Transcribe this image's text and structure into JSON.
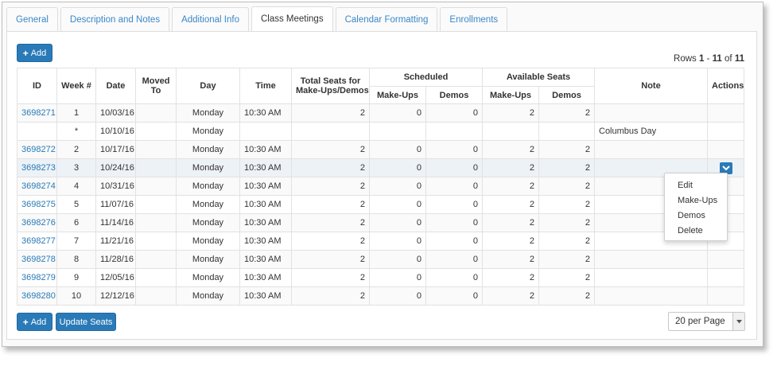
{
  "tabs": [
    {
      "label": "General"
    },
    {
      "label": "Description and Notes"
    },
    {
      "label": "Additional Info"
    },
    {
      "label": "Class Meetings"
    },
    {
      "label": "Calendar Formatting"
    },
    {
      "label": "Enrollments"
    }
  ],
  "active_tab": "Class Meetings",
  "toolbar": {
    "add_label": "Add",
    "add_icon": "plus-icon"
  },
  "rows_info": {
    "prefix": "Rows",
    "start": "1",
    "dash": "-",
    "end": "11",
    "of": "of",
    "total": "11"
  },
  "columns": {
    "id": "ID",
    "week": "Week #",
    "date": "Date",
    "moved_to_1": "Moved",
    "moved_to_2": "To",
    "day": "Day",
    "time": "Time",
    "total_seats_1": "Total Seats for",
    "total_seats_2": "Make-Ups/Demos",
    "scheduled": "Scheduled",
    "available": "Available Seats",
    "makeups": "Make-Ups",
    "demos": "Demos",
    "note": "Note",
    "actions": "Actions"
  },
  "rows": [
    {
      "id": "3698271",
      "week": "1",
      "date": "10/03/16",
      "moved": "",
      "day": "Monday",
      "time": "10:30 AM",
      "total": "2",
      "s_makeups": "0",
      "s_demos": "0",
      "a_makeups": "2",
      "a_demos": "2",
      "note": ""
    },
    {
      "id": "",
      "week": "*",
      "date": "10/10/16",
      "moved": "",
      "day": "Monday",
      "time": "",
      "total": "",
      "s_makeups": "",
      "s_demos": "",
      "a_makeups": "",
      "a_demos": "",
      "note": "Columbus Day"
    },
    {
      "id": "3698272",
      "week": "2",
      "date": "10/17/16",
      "moved": "",
      "day": "Monday",
      "time": "10:30 AM",
      "total": "2",
      "s_makeups": "0",
      "s_demos": "0",
      "a_makeups": "2",
      "a_demos": "2",
      "note": ""
    },
    {
      "id": "3698273",
      "week": "3",
      "date": "10/24/16",
      "moved": "",
      "day": "Monday",
      "time": "10:30 AM",
      "total": "2",
      "s_makeups": "0",
      "s_demos": "0",
      "a_makeups": "2",
      "a_demos": "2",
      "note": ""
    },
    {
      "id": "3698274",
      "week": "4",
      "date": "10/31/16",
      "moved": "",
      "day": "Monday",
      "time": "10:30 AM",
      "total": "2",
      "s_makeups": "0",
      "s_demos": "0",
      "a_makeups": "2",
      "a_demos": "2",
      "note": ""
    },
    {
      "id": "3698275",
      "week": "5",
      "date": "11/07/16",
      "moved": "",
      "day": "Monday",
      "time": "10:30 AM",
      "total": "2",
      "s_makeups": "0",
      "s_demos": "0",
      "a_makeups": "2",
      "a_demos": "2",
      "note": ""
    },
    {
      "id": "3698276",
      "week": "6",
      "date": "11/14/16",
      "moved": "",
      "day": "Monday",
      "time": "10:30 AM",
      "total": "2",
      "s_makeups": "0",
      "s_demos": "0",
      "a_makeups": "2",
      "a_demos": "2",
      "note": ""
    },
    {
      "id": "3698277",
      "week": "7",
      "date": "11/21/16",
      "moved": "",
      "day": "Monday",
      "time": "10:30 AM",
      "total": "2",
      "s_makeups": "0",
      "s_demos": "0",
      "a_makeups": "2",
      "a_demos": "2",
      "note": ""
    },
    {
      "id": "3698278",
      "week": "8",
      "date": "11/28/16",
      "moved": "",
      "day": "Monday",
      "time": "10:30 AM",
      "total": "2",
      "s_makeups": "0",
      "s_demos": "0",
      "a_makeups": "2",
      "a_demos": "2",
      "note": ""
    },
    {
      "id": "3698279",
      "week": "9",
      "date": "12/05/16",
      "moved": "",
      "day": "Monday",
      "time": "10:30 AM",
      "total": "2",
      "s_makeups": "0",
      "s_demos": "0",
      "a_makeups": "2",
      "a_demos": "2",
      "note": ""
    },
    {
      "id": "3698280",
      "week": "10",
      "date": "12/12/16",
      "moved": "",
      "day": "Monday",
      "time": "10:30 AM",
      "total": "2",
      "s_makeups": "0",
      "s_demos": "0",
      "a_makeups": "2",
      "a_demos": "2",
      "note": ""
    }
  ],
  "selected_row_index": 3,
  "actions_menu": {
    "icon": "chevron-down-icon",
    "items": [
      {
        "label": "Edit"
      },
      {
        "label": "Make-Ups"
      },
      {
        "label": "Demos"
      },
      {
        "label": "Delete"
      }
    ]
  },
  "footer": {
    "add_label": "Add",
    "update_label": "Update Seats",
    "per_page": "20 per Page"
  },
  "colors": {
    "accent": "#2a7ab7",
    "link": "#2a7ab7"
  }
}
